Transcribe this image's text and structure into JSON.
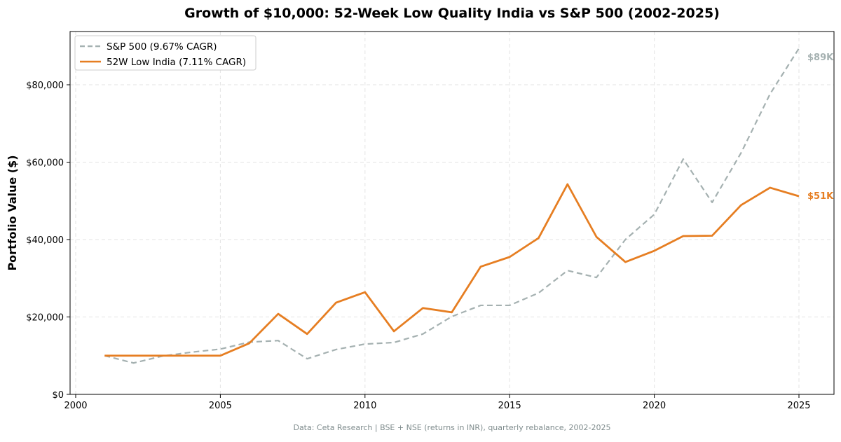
{
  "chart_data": {
    "type": "line",
    "title": "Growth of $10,000: 52-Week Low Quality India vs S&P 500 (2002-2025)",
    "xlabel": "",
    "ylabel": "Portfolio Value ($)",
    "xlim": [
      1999.6,
      2026.2
    ],
    "ylim": [
      0,
      93000
    ],
    "xticks": [
      2000,
      2005,
      2010,
      2015,
      2020,
      2025
    ],
    "xtick_labels": [
      "2000",
      "2005",
      "2010",
      "2015",
      "2020",
      "2025"
    ],
    "yticks": [
      0,
      20000,
      40000,
      60000,
      80000
    ],
    "ytick_labels": [
      "$0",
      "$20,000",
      "$40,000",
      "$60,000",
      "$80,000"
    ],
    "grid": true,
    "legend_position": "top-left",
    "x": [
      2001,
      2002,
      2003,
      2004,
      2005,
      2006,
      2007,
      2008,
      2009,
      2010,
      2011,
      2012,
      2013,
      2014,
      2015,
      2016,
      2017,
      2018,
      2019,
      2020,
      2021,
      2022,
      2023,
      2024,
      2025
    ],
    "series": [
      {
        "name": "S&P 500 (9.67% CAGR)",
        "color": "#a5b1b1",
        "style": "dashed",
        "end_label": "$89K",
        "values": [
          10000,
          8100,
          9900,
          10900,
          11700,
          13500,
          13900,
          9200,
          11600,
          13000,
          13400,
          15600,
          20100,
          23000,
          23000,
          26200,
          32000,
          30200,
          40000,
          46500,
          60800,
          49600,
          62400,
          77600,
          89400
        ]
      },
      {
        "name": "52W Low India (7.11% CAGR)",
        "color": "#e67e22",
        "style": "solid",
        "end_label": "$51K",
        "values": [
          10000,
          10000,
          10000,
          10000,
          10000,
          13200,
          20800,
          15600,
          23700,
          26400,
          16300,
          22300,
          21200,
          33000,
          35500,
          40400,
          54300,
          40700,
          34200,
          37100,
          40900,
          41000,
          48900,
          53400,
          51200
        ]
      }
    ],
    "footnote": "Data: Ceta Research | BSE + NSE (returns in INR), quarterly rebalance, 2002-2025"
  }
}
